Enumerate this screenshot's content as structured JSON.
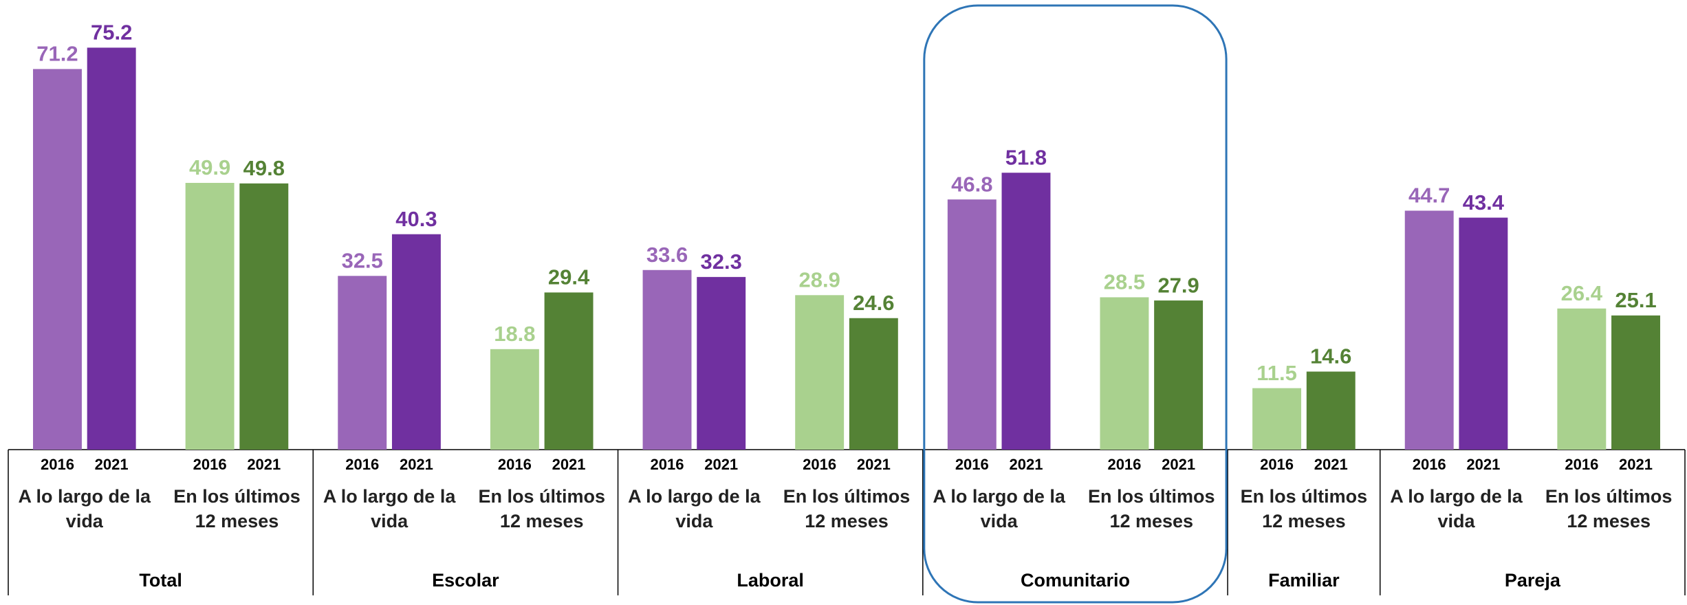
{
  "chart_data": {
    "type": "bar",
    "years": [
      "2016",
      "2021"
    ],
    "ylim": [
      0,
      80
    ],
    "groups": [
      {
        "name": "Total",
        "subgroups": [
          {
            "label": [
              "A lo largo de la",
              "vida"
            ],
            "colors": [
              "#9966b8",
              "#7030a0"
            ],
            "values": [
              71.2,
              75.2
            ]
          },
          {
            "label": [
              "En los últimos",
              "12 meses"
            ],
            "colors": [
              "#a9d18e",
              "#548235"
            ],
            "values": [
              49.9,
              49.8
            ]
          }
        ]
      },
      {
        "name": "Escolar",
        "subgroups": [
          {
            "label": [
              "A lo largo de la",
              "vida"
            ],
            "colors": [
              "#9966b8",
              "#7030a0"
            ],
            "values": [
              32.5,
              40.3
            ]
          },
          {
            "label": [
              "En los últimos",
              "12 meses"
            ],
            "colors": [
              "#a9d18e",
              "#548235"
            ],
            "values": [
              18.8,
              29.4
            ]
          }
        ]
      },
      {
        "name": "Laboral",
        "subgroups": [
          {
            "label": [
              "A lo largo de la",
              "vida"
            ],
            "colors": [
              "#9966b8",
              "#7030a0"
            ],
            "values": [
              33.6,
              32.3
            ]
          },
          {
            "label": [
              "En los últimos",
              "12 meses"
            ],
            "colors": [
              "#a9d18e",
              "#548235"
            ],
            "values": [
              28.9,
              24.6
            ]
          }
        ]
      },
      {
        "name": "Comunitario",
        "subgroups": [
          {
            "label": [
              "A lo largo de la",
              "vida"
            ],
            "colors": [
              "#9966b8",
              "#7030a0"
            ],
            "values": [
              46.8,
              51.8
            ]
          },
          {
            "label": [
              "En los últimos",
              "12 meses"
            ],
            "colors": [
              "#a9d18e",
              "#548235"
            ],
            "values": [
              28.5,
              27.9
            ]
          }
        ]
      },
      {
        "name": "Familiar",
        "subgroups": [
          {
            "label": [
              "En los últimos",
              "12 meses"
            ],
            "colors": [
              "#a9d18e",
              "#548235"
            ],
            "values": [
              11.5,
              14.6
            ]
          }
        ]
      },
      {
        "name": "Pareja",
        "subgroups": [
          {
            "label": [
              "A lo largo de la",
              "vida"
            ],
            "colors": [
              "#9966b8",
              "#7030a0"
            ],
            "values": [
              44.7,
              43.4
            ]
          },
          {
            "label": [
              "En los últimos",
              "12 meses"
            ],
            "colors": [
              "#a9d18e",
              "#548235"
            ],
            "values": [
              26.4,
              25.1
            ]
          }
        ]
      }
    ]
  }
}
